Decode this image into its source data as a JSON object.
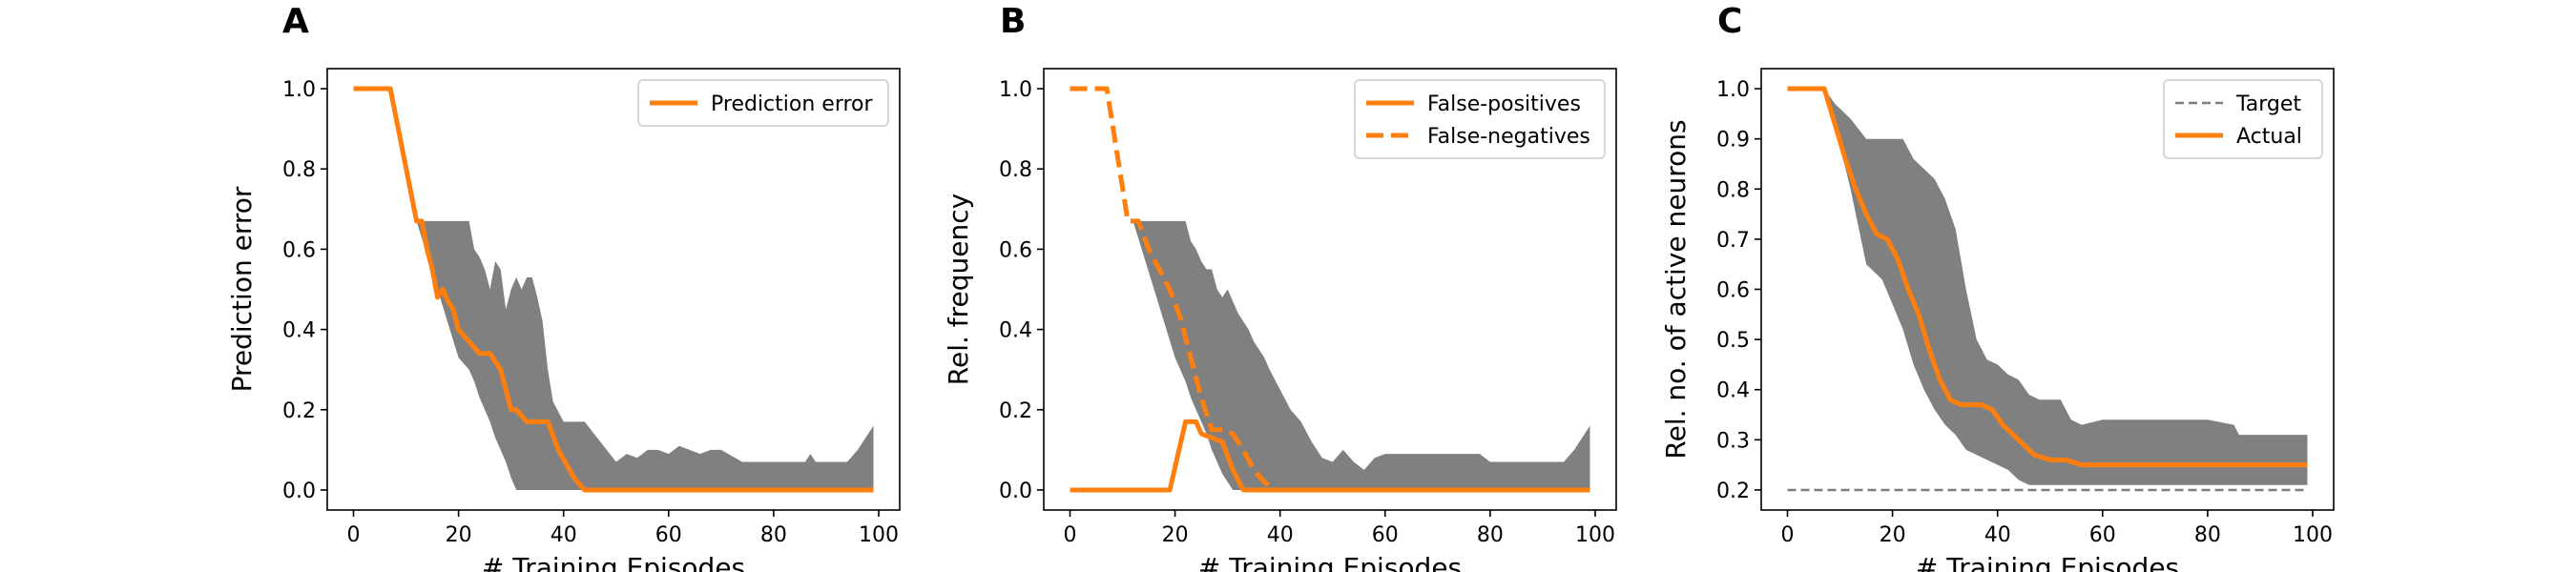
{
  "colors": {
    "orange": "#ff7f0e",
    "band": "#808080",
    "target": "#7f7f7f",
    "axis": "#000000"
  },
  "chart_data": [
    {
      "panel": "A",
      "type": "line",
      "xlabel": "# Training Episodes",
      "ylabel": "Prediction error",
      "xlim": [
        -5,
        104
      ],
      "ylim": [
        -0.05,
        1.05
      ],
      "xticks": [
        0,
        20,
        40,
        60,
        80,
        100
      ],
      "yticks": [
        0.0,
        0.2,
        0.4,
        0.6,
        0.8,
        1.0
      ],
      "ytick_format": "1",
      "legend": {
        "position": "top-right",
        "entries": [
          "Prediction error"
        ]
      },
      "series": [
        {
          "name": "Prediction error",
          "style": "solid",
          "x": [
            0,
            7,
            12,
            13,
            14,
            15,
            16,
            17,
            18,
            19,
            20,
            22,
            24,
            26,
            28,
            30,
            31,
            33,
            37,
            39,
            42,
            44,
            99
          ],
          "y": [
            1.0,
            1.0,
            0.67,
            0.67,
            0.6,
            0.55,
            0.48,
            0.5,
            0.47,
            0.45,
            0.4,
            0.37,
            0.34,
            0.34,
            0.3,
            0.2,
            0.2,
            0.17,
            0.17,
            0.1,
            0.03,
            0.0,
            0.0
          ]
        }
      ],
      "band": {
        "x": [
          0,
          7,
          12,
          20,
          22,
          23,
          24,
          25,
          26,
          27,
          28,
          29,
          30,
          31,
          32,
          33,
          34,
          35,
          36,
          37,
          38,
          40,
          42,
          44,
          50,
          52,
          54,
          56,
          58,
          60,
          62,
          64,
          66,
          68,
          70,
          74,
          78,
          80,
          84,
          86,
          87,
          88,
          90,
          94,
          96,
          98,
          99
        ],
        "upper": [
          1.0,
          1.0,
          0.67,
          0.67,
          0.67,
          0.6,
          0.58,
          0.55,
          0.5,
          0.57,
          0.55,
          0.45,
          0.5,
          0.53,
          0.5,
          0.53,
          0.53,
          0.48,
          0.42,
          0.3,
          0.22,
          0.17,
          0.17,
          0.17,
          0.07,
          0.09,
          0.08,
          0.1,
          0.1,
          0.09,
          0.11,
          0.1,
          0.09,
          0.1,
          0.1,
          0.07,
          0.07,
          0.07,
          0.07,
          0.07,
          0.09,
          0.07,
          0.07,
          0.07,
          0.1,
          0.14,
          0.16
        ],
        "lower": [
          1.0,
          1.0,
          0.67,
          0.33,
          0.3,
          0.27,
          0.23,
          0.2,
          0.17,
          0.13,
          0.1,
          0.07,
          0.03,
          0.0,
          0.0,
          0.0,
          0.0,
          0.0,
          0.0,
          0.0,
          0.0,
          0.0,
          0.0,
          0.0,
          0.0,
          0.0,
          0.0,
          0.0,
          0.0,
          0.0,
          0.0,
          0.0,
          0.0,
          0.0,
          0.0,
          0.0,
          0.0,
          0.0,
          0.0,
          0.0,
          0.0,
          0.0,
          0.0,
          0.0,
          0.0,
          0.0,
          0.0
        ]
      }
    },
    {
      "panel": "B",
      "type": "line",
      "xlabel": "# Training Episodes",
      "ylabel": "Rel. frequency",
      "xlim": [
        -5,
        104
      ],
      "ylim": [
        -0.05,
        1.05
      ],
      "xticks": [
        0,
        20,
        40,
        60,
        80,
        100
      ],
      "yticks": [
        0.0,
        0.2,
        0.4,
        0.6,
        0.8,
        1.0
      ],
      "ytick_format": "1",
      "legend": {
        "position": "top-right",
        "entries": [
          "False-positives",
          "False-negatives"
        ]
      },
      "series": [
        {
          "name": "False-positives",
          "style": "solid",
          "x": [
            0,
            19,
            22,
            23,
            24,
            25,
            27,
            29,
            31,
            33,
            99
          ],
          "y": [
            0.0,
            0.0,
            0.17,
            0.17,
            0.17,
            0.14,
            0.13,
            0.12,
            0.05,
            0.0,
            0.0
          ]
        },
        {
          "name": "False-negatives",
          "style": "dashed",
          "x": [
            0,
            7,
            11,
            13,
            15,
            17,
            19,
            21,
            23,
            25,
            27,
            29,
            31,
            33,
            35,
            37,
            39,
            99
          ],
          "y": [
            1.0,
            1.0,
            0.67,
            0.67,
            0.6,
            0.55,
            0.5,
            0.43,
            0.33,
            0.23,
            0.15,
            0.15,
            0.14,
            0.1,
            0.05,
            0.02,
            0.0,
            0.0
          ]
        }
      ],
      "band": {
        "x": [
          0,
          7,
          12,
          20,
          22,
          23,
          24,
          25,
          26,
          27,
          28,
          29,
          30,
          31,
          32,
          33,
          34,
          35,
          36,
          37,
          38,
          40,
          42,
          44,
          46,
          48,
          50,
          52,
          54,
          56,
          58,
          60,
          62,
          64,
          66,
          68,
          70,
          74,
          78,
          80,
          84,
          86,
          87,
          88,
          90,
          94,
          96,
          98,
          99
        ],
        "upper": [
          1.0,
          1.0,
          0.67,
          0.67,
          0.67,
          0.62,
          0.6,
          0.57,
          0.55,
          0.55,
          0.5,
          0.48,
          0.5,
          0.47,
          0.44,
          0.42,
          0.4,
          0.37,
          0.35,
          0.33,
          0.3,
          0.25,
          0.2,
          0.17,
          0.12,
          0.08,
          0.07,
          0.1,
          0.07,
          0.05,
          0.08,
          0.09,
          0.09,
          0.09,
          0.09,
          0.09,
          0.09,
          0.09,
          0.09,
          0.07,
          0.07,
          0.07,
          0.07,
          0.07,
          0.07,
          0.07,
          0.1,
          0.14,
          0.16
        ],
        "lower": [
          1.0,
          1.0,
          0.67,
          0.33,
          0.27,
          0.23,
          0.2,
          0.17,
          0.14,
          0.1,
          0.07,
          0.04,
          0.02,
          0.0,
          0.0,
          0.0,
          0.0,
          0.0,
          0.0,
          0.0,
          0.0,
          0.0,
          0.0,
          0.0,
          0.0,
          0.0,
          0.0,
          0.0,
          0.0,
          0.0,
          0.0,
          0.0,
          0.0,
          0.0,
          0.0,
          0.0,
          0.0,
          0.0,
          0.0,
          0.0,
          0.0,
          0.0,
          0.0,
          0.0,
          0.0,
          0.0,
          0.0,
          0.0,
          0.0
        ]
      }
    },
    {
      "panel": "C",
      "type": "line",
      "xlabel": "# Training Episodes",
      "ylabel": "Rel. no. of active neurons",
      "xlim": [
        -5,
        104
      ],
      "ylim": [
        0.16,
        1.04
      ],
      "xticks": [
        0,
        20,
        40,
        60,
        80,
        100
      ],
      "yticks": [
        0.2,
        0.3,
        0.4,
        0.5,
        0.6,
        0.7,
        0.8,
        0.9,
        1.0
      ],
      "ytick_format": "1",
      "legend": {
        "position": "top-right",
        "entries": [
          "Target",
          "Actual"
        ]
      },
      "series": [
        {
          "name": "Target",
          "style": "dashed-thin",
          "x": [
            0,
            99
          ],
          "y": [
            0.2,
            0.2
          ]
        },
        {
          "name": "Actual",
          "style": "solid",
          "x": [
            0,
            7,
            9,
            11,
            13,
            15,
            17,
            19,
            21,
            23,
            25,
            27,
            29,
            31,
            33,
            35,
            37,
            39,
            41,
            43,
            45,
            47,
            50,
            53,
            56,
            60,
            70,
            80,
            90,
            99
          ],
          "y": [
            1.0,
            1.0,
            0.93,
            0.86,
            0.8,
            0.75,
            0.71,
            0.7,
            0.66,
            0.6,
            0.55,
            0.48,
            0.42,
            0.38,
            0.37,
            0.37,
            0.37,
            0.36,
            0.33,
            0.31,
            0.29,
            0.27,
            0.26,
            0.26,
            0.25,
            0.25,
            0.25,
            0.25,
            0.25,
            0.25
          ]
        }
      ],
      "band": {
        "x": [
          0,
          7,
          9,
          12,
          15,
          18,
          20,
          22,
          24,
          26,
          28,
          30,
          32,
          34,
          36,
          38,
          40,
          42,
          44,
          46,
          48,
          50,
          52,
          54,
          56,
          60,
          66,
          70,
          80,
          85,
          86,
          88,
          90,
          99
        ],
        "upper": [
          1.0,
          1.0,
          0.97,
          0.94,
          0.9,
          0.9,
          0.9,
          0.9,
          0.86,
          0.84,
          0.82,
          0.78,
          0.72,
          0.6,
          0.5,
          0.46,
          0.45,
          0.43,
          0.42,
          0.39,
          0.38,
          0.38,
          0.38,
          0.34,
          0.33,
          0.34,
          0.34,
          0.34,
          0.34,
          0.33,
          0.31,
          0.31,
          0.31,
          0.31
        ],
        "lower": [
          1.0,
          1.0,
          0.93,
          0.8,
          0.65,
          0.62,
          0.57,
          0.52,
          0.45,
          0.4,
          0.36,
          0.33,
          0.31,
          0.28,
          0.27,
          0.26,
          0.25,
          0.24,
          0.22,
          0.21,
          0.21,
          0.21,
          0.21,
          0.21,
          0.21,
          0.21,
          0.21,
          0.21,
          0.21,
          0.21,
          0.21,
          0.21,
          0.21,
          0.21
        ]
      }
    }
  ]
}
